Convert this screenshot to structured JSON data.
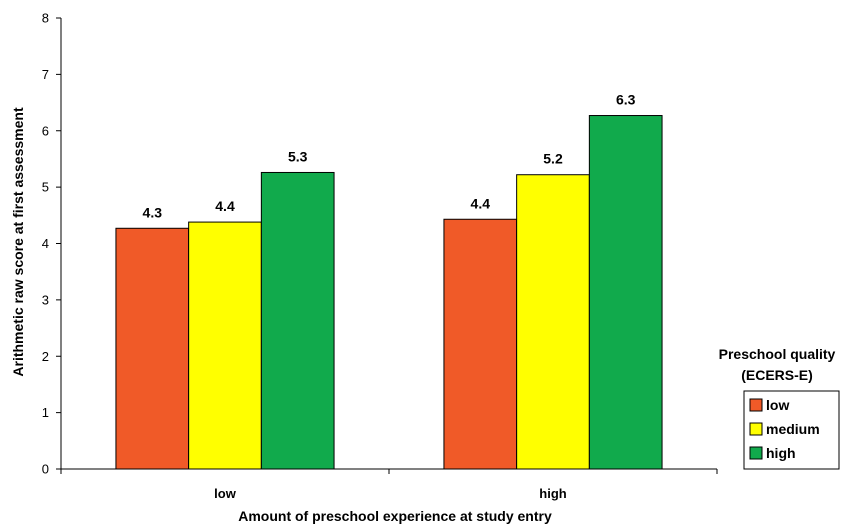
{
  "chart_data": {
    "type": "bar",
    "categories": [
      "low",
      "high"
    ],
    "series": [
      {
        "name": "low",
        "color": "#F05A28",
        "values": [
          4.3,
          4.4
        ],
        "labels": [
          "4.3",
          "4.4"
        ],
        "fill_values": [
          4.27,
          4.43
        ]
      },
      {
        "name": "medium",
        "color": "#FFFF00",
        "values": [
          4.4,
          5.2
        ],
        "labels": [
          "4.4",
          "5.2"
        ],
        "fill_values": [
          4.38,
          5.22
        ]
      },
      {
        "name": "high",
        "color": "#11AA4C",
        "values": [
          5.3,
          6.3
        ],
        "labels": [
          "5.3",
          "6.3"
        ],
        "fill_values": [
          5.26,
          6.27
        ]
      }
    ],
    "xlabel": "Amount of preschool experience at study entry",
    "ylabel": "Arithmetic raw score at first assessment",
    "ylim": [
      0,
      8
    ],
    "yticks": [
      0,
      1,
      2,
      3,
      4,
      5,
      6,
      7,
      8
    ],
    "grid": false,
    "legend": {
      "title_lines": [
        "Preschool quality",
        "(ECERS-E)"
      ],
      "position": "right"
    }
  }
}
